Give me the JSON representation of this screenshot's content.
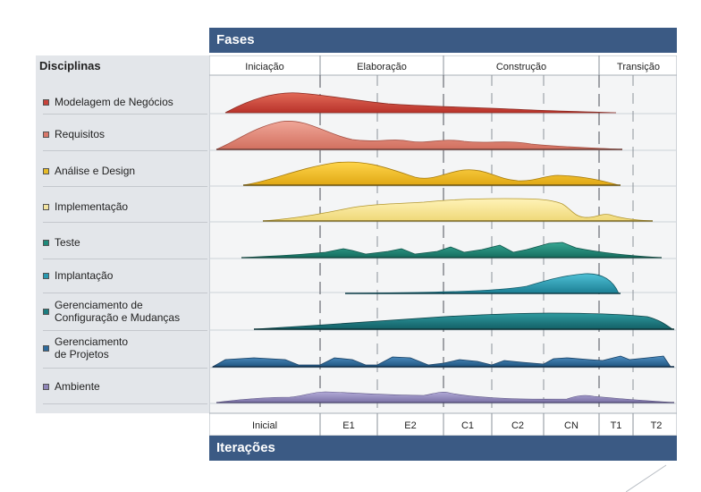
{
  "header": {
    "fases": "Fases",
    "iteracoes": "Iterações",
    "disciplinas": "Disciplinas"
  },
  "phases": [
    "Iniciação",
    "Elaboração",
    "Construção",
    "Transição"
  ],
  "iterations": [
    "Inicial",
    "E1",
    "E2",
    "C1",
    "C2",
    "CN",
    "T1",
    "T2"
  ],
  "disciplines": [
    {
      "label": "Modelagem de Negócios",
      "color": "#c8423a"
    },
    {
      "label": "Requisitos",
      "color": "#d9786a"
    },
    {
      "label": "Análise e Design",
      "color": "#e6bb27"
    },
    {
      "label": "Implementação",
      "color": "#f2e3a0"
    },
    {
      "label": "Teste",
      "color": "#1f8a7a"
    },
    {
      "label": "Implantação",
      "color": "#2a99b0"
    },
    {
      "label": "Gerenciamento de",
      "label2": "Configuração e Mudanças",
      "color": "#1b7d80"
    },
    {
      "label": "Gerenciamento",
      "label2": "de Projetos",
      "color": "#2d6a9c"
    },
    {
      "label": "Ambiente",
      "color": "#8f86b8"
    }
  ]
}
